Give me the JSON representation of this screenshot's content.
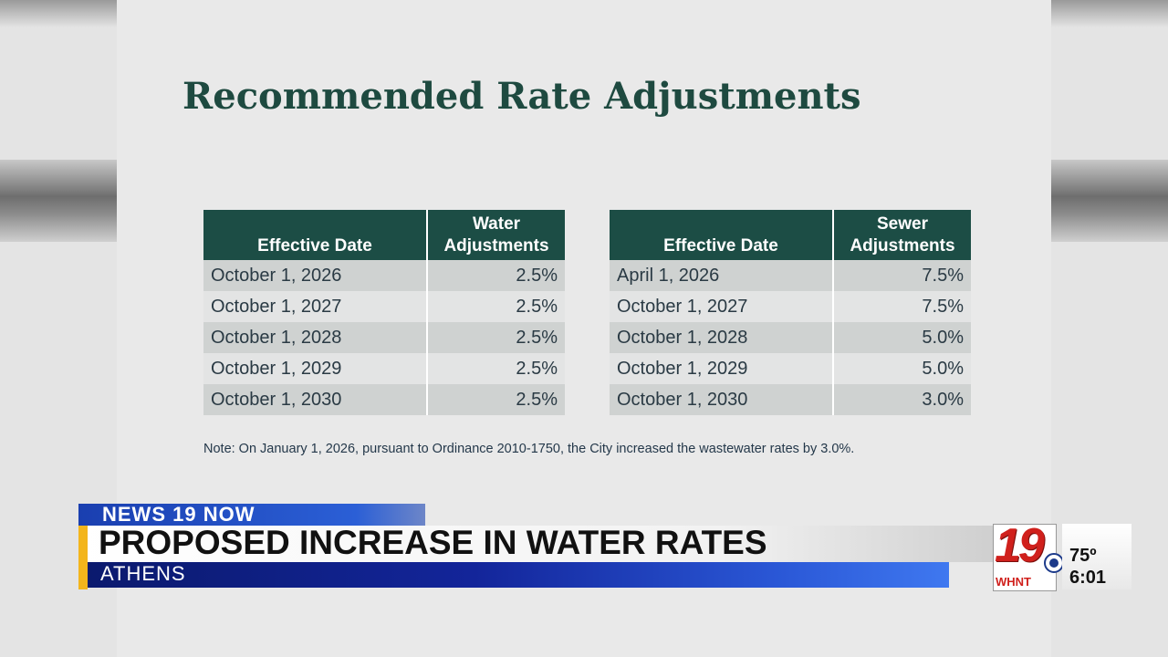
{
  "slide": {
    "title": "Recommended Rate Adjustments",
    "water_table": {
      "headers": [
        "Effective Date",
        "Water Adjustments"
      ],
      "rows": [
        [
          "October 1, 2026",
          "2.5%"
        ],
        [
          "October 1, 2027",
          "2.5%"
        ],
        [
          "October 1, 2028",
          "2.5%"
        ],
        [
          "October 1, 2029",
          "2.5%"
        ],
        [
          "October 1, 2030",
          "2.5%"
        ]
      ]
    },
    "sewer_table": {
      "headers": [
        "Effective Date",
        "Sewer Adjustments"
      ],
      "rows": [
        [
          "April 1, 2026",
          "7.5%"
        ],
        [
          "October 1, 2027",
          "7.5%"
        ],
        [
          "October 1, 2028",
          "5.0%"
        ],
        [
          "October 1, 2029",
          "5.0%"
        ],
        [
          "October 1, 2030",
          "3.0%"
        ]
      ]
    },
    "note": "Note: On January 1, 2026, pursuant to Ordinance 2010-1750, the City increased the wastewater rates by 3.0%."
  },
  "lower_third": {
    "kicker": "NEWS 19 NOW",
    "headline": "PROPOSED INCREASE IN WATER RATES",
    "location": "ATHENS"
  },
  "station": {
    "channel": "19",
    "call_letters": "WHNT",
    "network_icon": "cbs-eye-icon"
  },
  "weather": {
    "temperature": "75º",
    "time": "6:01"
  },
  "colors": {
    "table_header": "#1c4d45",
    "title": "#1e4a40",
    "news_blue": "#13259a",
    "accent_gold": "#f3b51c",
    "logo_red": "#d0201c"
  }
}
